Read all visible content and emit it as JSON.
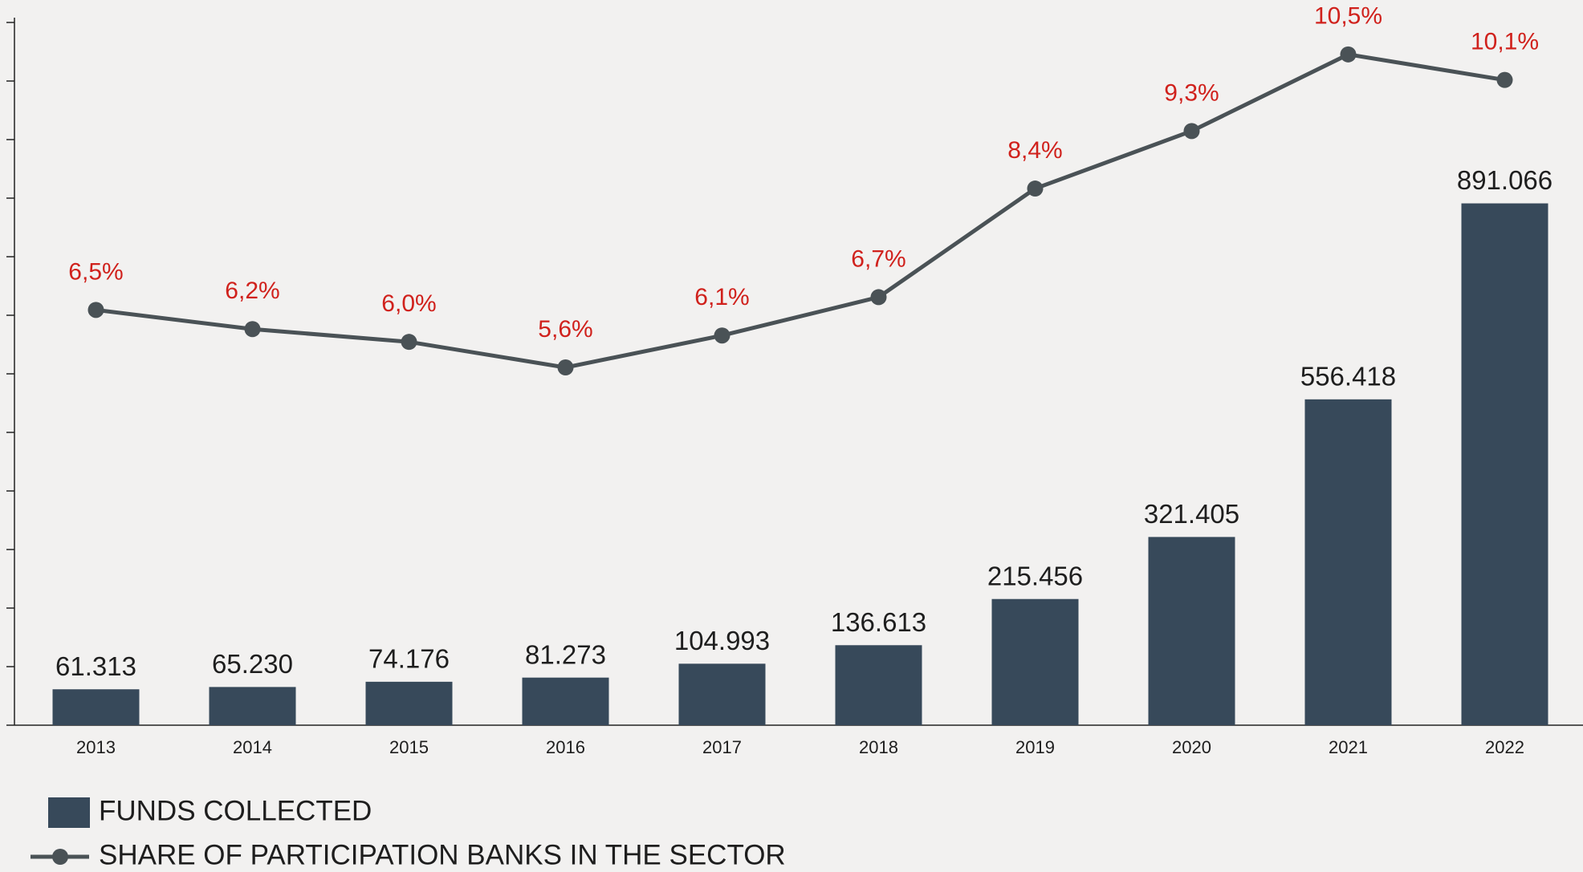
{
  "chart_data": {
    "type": "bar",
    "categories": [
      "2013",
      "2014",
      "2015",
      "2016",
      "2017",
      "2018",
      "2019",
      "2020",
      "2021",
      "2022"
    ],
    "ylim": [
      0,
      1200000
    ],
    "y2lim": [
      0,
      11
    ],
    "legend": "bottom-left",
    "series": [
      {
        "name": "FUNDS COLLECTED",
        "type": "bar",
        "color": "#37495a",
        "values": [
          61313,
          65230,
          74176,
          81273,
          104993,
          136613,
          215456,
          321405,
          556418,
          891066
        ],
        "value_labels": [
          "61.313",
          "65.230",
          "74.176",
          "81.273",
          "104.993",
          "136.613",
          "215.456",
          "321.405",
          "556.418",
          "891.066"
        ]
      },
      {
        "name": "SHARE OF PARTICIPATION BANKS IN THE SECTOR",
        "type": "line",
        "axis": "y2",
        "color": "#4a5256",
        "label_color": "#d0211c",
        "values": [
          6.5,
          6.2,
          6.0,
          5.6,
          6.1,
          6.7,
          8.4,
          9.3,
          10.5,
          10.1
        ],
        "value_labels": [
          "6,5%",
          "6,2%",
          "6,0%",
          "5,6%",
          "6,1%",
          "6,7%",
          "8,4%",
          "9,3%",
          "10,5%",
          "10,1%"
        ]
      }
    ]
  }
}
